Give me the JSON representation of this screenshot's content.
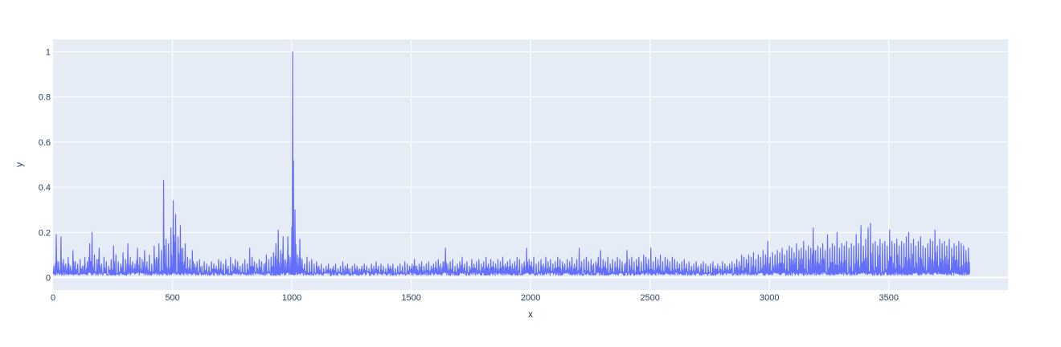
{
  "chart_data": {
    "type": "line",
    "title": "",
    "xlabel": "x",
    "ylabel": "y",
    "xlim": [
      0,
      3999
    ],
    "ylim": [
      -0.055,
      1.055
    ],
    "x_ticks": [
      0,
      500,
      1000,
      1500,
      2000,
      2500,
      3000,
      3500
    ],
    "x_tick_labels": [
      "0",
      "500",
      "1000",
      "1500",
      "2000",
      "2500",
      "3000",
      "3500"
    ],
    "y_ticks": [
      0,
      0.2,
      0.4,
      0.6,
      0.8,
      1
    ],
    "y_tick_labels": [
      "0",
      "0.2",
      "0.4",
      "0.6",
      "0.8",
      "1"
    ],
    "grid": true,
    "legend": "none",
    "series_color": "#636efa",
    "plot_background": "#e5ecf6",
    "series": [
      {
        "x_start": 0,
        "x_step": 10,
        "values": [
          0.05,
          0.19,
          0.07,
          0.18,
          0.08,
          0.06,
          0.09,
          0.05,
          0.12,
          0.07,
          0.06,
          0.08,
          0.05,
          0.09,
          0.07,
          0.15,
          0.2,
          0.1,
          0.08,
          0.13,
          0.06,
          0.09,
          0.07,
          0.05,
          0.08,
          0.14,
          0.1,
          0.07,
          0.06,
          0.11,
          0.08,
          0.15,
          0.09,
          0.07,
          0.06,
          0.13,
          0.09,
          0.08,
          0.12,
          0.07,
          0.1,
          0.06,
          0.14,
          0.09,
          0.15,
          0.12,
          0.43,
          0.17,
          0.15,
          0.22,
          0.34,
          0.28,
          0.18,
          0.23,
          0.13,
          0.15,
          0.09,
          0.08,
          0.12,
          0.06,
          0.07,
          0.08,
          0.05,
          0.07,
          0.06,
          0.05,
          0.07,
          0.06,
          0.05,
          0.08,
          0.07,
          0.06,
          0.08,
          0.05,
          0.09,
          0.06,
          0.08,
          0.07,
          0.05,
          0.06,
          0.08,
          0.06,
          0.13,
          0.09,
          0.07,
          0.06,
          0.08,
          0.07,
          0.06,
          0.1,
          0.08,
          0.09,
          0.11,
          0.15,
          0.21,
          0.12,
          0.18,
          0.08,
          0.18,
          0.09,
          1.0,
          0.3,
          0.1,
          0.17,
          0.08,
          0.06,
          0.09,
          0.07,
          0.08,
          0.06,
          0.07,
          0.05,
          0.06,
          0.04,
          0.05,
          0.06,
          0.04,
          0.05,
          0.06,
          0.04,
          0.05,
          0.07,
          0.05,
          0.06,
          0.04,
          0.05,
          0.06,
          0.05,
          0.04,
          0.05,
          0.06,
          0.05,
          0.04,
          0.06,
          0.05,
          0.07,
          0.05,
          0.06,
          0.05,
          0.04,
          0.06,
          0.05,
          0.06,
          0.04,
          0.05,
          0.06,
          0.05,
          0.07,
          0.06,
          0.05,
          0.06,
          0.08,
          0.05,
          0.06,
          0.07,
          0.05,
          0.06,
          0.07,
          0.05,
          0.06,
          0.07,
          0.08,
          0.06,
          0.07,
          0.13,
          0.06,
          0.07,
          0.08,
          0.05,
          0.06,
          0.07,
          0.09,
          0.06,
          0.07,
          0.05,
          0.08,
          0.06,
          0.07,
          0.08,
          0.06,
          0.07,
          0.09,
          0.06,
          0.08,
          0.07,
          0.06,
          0.08,
          0.07,
          0.09,
          0.06,
          0.07,
          0.08,
          0.06,
          0.07,
          0.09,
          0.08,
          0.06,
          0.07,
          0.13,
          0.08,
          0.07,
          0.09,
          0.06,
          0.07,
          0.08,
          0.06,
          0.09,
          0.07,
          0.08,
          0.06,
          0.07,
          0.09,
          0.08,
          0.07,
          0.06,
          0.08,
          0.07,
          0.09,
          0.06,
          0.08,
          0.13,
          0.07,
          0.08,
          0.09,
          0.07,
          0.08,
          0.06,
          0.07,
          0.09,
          0.12,
          0.08,
          0.07,
          0.09,
          0.06,
          0.08,
          0.07,
          0.09,
          0.08,
          0.07,
          0.06,
          0.12,
          0.08,
          0.09,
          0.07,
          0.08,
          0.09,
          0.07,
          0.1,
          0.09,
          0.08,
          0.13,
          0.07,
          0.09,
          0.08,
          0.1,
          0.07,
          0.09,
          0.08,
          0.07,
          0.09,
          0.08,
          0.07,
          0.06,
          0.07,
          0.08,
          0.06,
          0.07,
          0.05,
          0.06,
          0.07,
          0.05,
          0.06,
          0.07,
          0.06,
          0.05,
          0.06,
          0.07,
          0.05,
          0.06,
          0.05,
          0.07,
          0.06,
          0.05,
          0.06,
          0.07,
          0.06,
          0.08,
          0.07,
          0.1,
          0.09,
          0.08,
          0.1,
          0.09,
          0.11,
          0.08,
          0.1,
          0.09,
          0.12,
          0.1,
          0.16,
          0.09,
          0.11,
          0.1,
          0.12,
          0.11,
          0.13,
          0.1,
          0.12,
          0.14,
          0.13,
          0.11,
          0.15,
          0.12,
          0.13,
          0.16,
          0.12,
          0.14,
          0.13,
          0.22,
          0.12,
          0.14,
          0.13,
          0.15,
          0.12,
          0.19,
          0.13,
          0.15,
          0.14,
          0.2,
          0.13,
          0.15,
          0.14,
          0.16,
          0.13,
          0.15,
          0.14,
          0.19,
          0.15,
          0.23,
          0.14,
          0.17,
          0.22,
          0.24,
          0.15,
          0.16,
          0.14,
          0.17,
          0.15,
          0.16,
          0.14,
          0.21,
          0.16,
          0.15,
          0.17,
          0.14,
          0.16,
          0.15,
          0.18,
          0.2,
          0.15,
          0.17,
          0.14,
          0.16,
          0.18,
          0.14,
          0.13,
          0.15,
          0.17,
          0.16,
          0.21,
          0.14,
          0.17,
          0.15,
          0.16,
          0.14,
          0.17,
          0.13,
          0.15,
          0.14,
          0.16,
          0.15,
          0.14,
          0.12,
          0.13
        ]
      }
    ]
  }
}
